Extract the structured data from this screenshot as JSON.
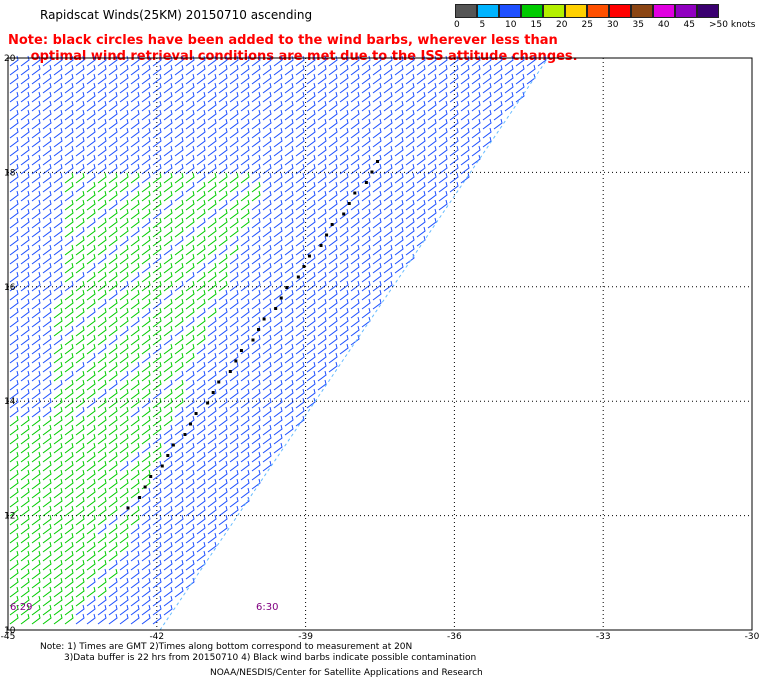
{
  "title": "Rapidscat Winds(25KM) 20150710 ascending",
  "note": {
    "line1": "Note: black circles have been added to the wind barbs, wherever less than",
    "line2": "optimal wind retrieval conditions are met due to the ISS attitude changes."
  },
  "color_scale": {
    "colors": [
      "#555555",
      "#00b4ff",
      "#1e50ff",
      "#00cc00",
      "#b4f000",
      "#ffd000",
      "#ff5000",
      "#ff0000",
      "#8b4513",
      "#e000e0",
      "#9000c0",
      "#3a0070"
    ],
    "labels": [
      "0",
      "5",
      "10",
      "15",
      "20",
      "25",
      "30",
      "35",
      "40",
      "45",
      ">50 knots"
    ]
  },
  "axes": {
    "lon_ticks": [
      "-45",
      "-42",
      "-39",
      "-36",
      "-33",
      "-30"
    ],
    "lat_ticks": [
      "20",
      "18",
      "16",
      "14",
      "12",
      "10"
    ],
    "lon_range": [
      -45,
      -30
    ],
    "lat_range": [
      10,
      20
    ]
  },
  "swath": {
    "west_edge_color": "#1e3cff",
    "slow_color": "#00cc00",
    "fast_color": "#1e50ff",
    "flagged_marker_color": "#000000"
  },
  "time_labels": [
    "6:29",
    "6:30"
  ],
  "footer": {
    "line1": "Note: 1) Times are GMT 2)Times along bottom correspond to measurement at 20N",
    "line2": "3)Data buffer is 22 hrs from 20150710 4) Black wind barbs indicate possible contamination",
    "line3": "NOAA/NESDIS/Center for Satellite Applications and Research"
  }
}
